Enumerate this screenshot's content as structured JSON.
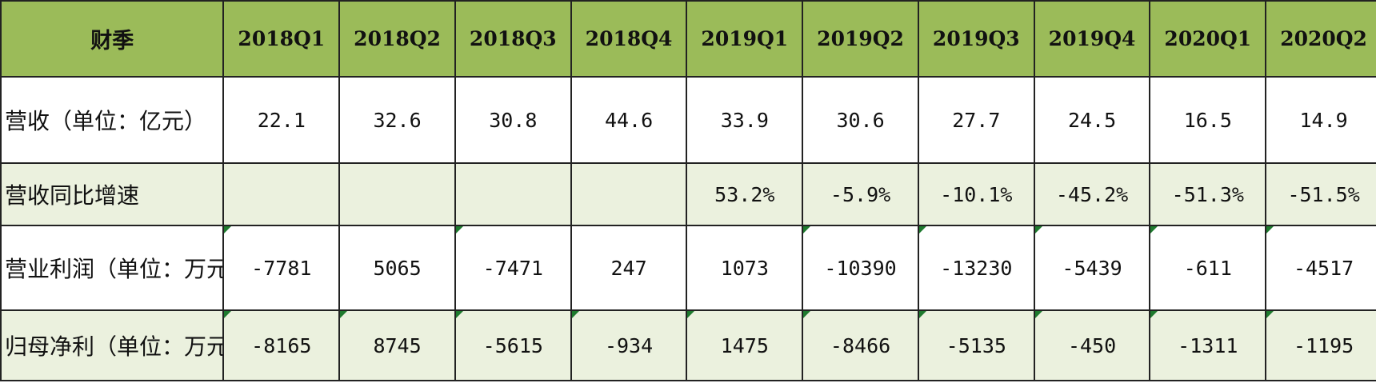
{
  "chart_data": {
    "type": "table",
    "columns": [
      "财季",
      "2018Q1",
      "2018Q2",
      "2018Q3",
      "2018Q4",
      "2019Q1",
      "2019Q2",
      "2019Q3",
      "2019Q4",
      "2020Q1",
      "2020Q2"
    ],
    "rows": [
      {
        "label": "营收（单位：亿元）",
        "values": [
          "22.1",
          "32.6",
          "30.8",
          "44.6",
          "33.9",
          "30.6",
          "27.7",
          "24.5",
          "16.5",
          "14.9"
        ],
        "shaded": false
      },
      {
        "label": "营收同比增速",
        "values": [
          "",
          "",
          "",
          "",
          "53.2%",
          "-5.9%",
          "-10.1%",
          "-45.2%",
          "-51.3%",
          "-51.5%"
        ],
        "shaded": true
      },
      {
        "label": "营业利润（单位：万元）",
        "values": [
          "-7781",
          "5065",
          "-7471",
          "247",
          "1073",
          "-10390",
          "-13230",
          "-5439",
          "-611",
          "-4517"
        ],
        "shaded": false
      },
      {
        "label": "归母净利（单位：万元）",
        "values": [
          "-8165",
          "8745",
          "-5615",
          "-934",
          "1475",
          "-8466",
          "-5135",
          "-450",
          "-1311",
          "-1195"
        ],
        "shaded": true
      }
    ],
    "colors": {
      "header": "#9bbb59",
      "shaded_row": "#ebf1de",
      "border": "#222222",
      "comment_marker": "#1e7a2e"
    }
  }
}
